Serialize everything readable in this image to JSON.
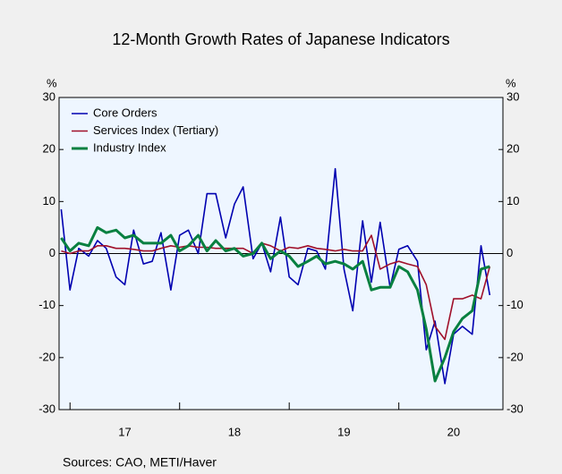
{
  "chart_data": {
    "type": "line",
    "title": "12-Month Growth Rates of Japanese Indicators",
    "y_unit": "%",
    "source": "Sources:  CAO, METI/Haver",
    "x": [
      16.92,
      17.0,
      17.08,
      17.17,
      17.25,
      17.33,
      17.42,
      17.5,
      17.58,
      17.67,
      17.75,
      17.83,
      17.92,
      18.0,
      18.08,
      18.17,
      18.25,
      18.33,
      18.42,
      18.5,
      18.58,
      18.67,
      18.75,
      18.83,
      18.92,
      19.0,
      19.08,
      19.17,
      19.25,
      19.33,
      19.42,
      19.5,
      19.58,
      19.67,
      19.75,
      19.83,
      19.92,
      20.0,
      20.08,
      20.17,
      20.25,
      20.33,
      20.42,
      20.5,
      20.58,
      20.67,
      20.75,
      20.83
    ],
    "xlim": [
      16.9,
      20.95
    ],
    "xticks": [
      {
        "value": 17.5,
        "label": "17"
      },
      {
        "value": 18.5,
        "label": "18"
      },
      {
        "value": 19.5,
        "label": "19"
      },
      {
        "value": 20.5,
        "label": "20"
      }
    ],
    "xminor": [
      17,
      18,
      19,
      20
    ],
    "ylim": [
      -30,
      30
    ],
    "yticks": [
      -30,
      -20,
      -10,
      0,
      10,
      20,
      30
    ],
    "legend": "top-left",
    "series": [
      {
        "name": "Core Orders",
        "color": "#0000b0",
        "width": 1.6,
        "values": [
          8.5,
          -7,
          1,
          -0.5,
          2.5,
          1,
          -4.5,
          -6,
          4.5,
          -2,
          -1.5,
          4,
          -7,
          3.5,
          4.5,
          0,
          11.5,
          11.5,
          3,
          9.5,
          12.8,
          -1,
          2,
          -3.5,
          7,
          -4.5,
          -6,
          1,
          0.5,
          -3,
          16.3,
          -3,
          -11,
          6.3,
          -5.5,
          6,
          -6.5,
          0.8,
          1.5,
          -1.5,
          -18.5,
          -13,
          -25,
          -15.5,
          -14,
          -15.5,
          1.5,
          -8
        ]
      },
      {
        "name": "Services Index (Tertiary)",
        "color": "#a0102a",
        "width": 1.6,
        "values": [
          0.5,
          0,
          0.5,
          0.5,
          1.5,
          1.5,
          1,
          1,
          0.8,
          0.5,
          0.5,
          1,
          1.5,
          1.2,
          1.5,
          1.2,
          1.2,
          1,
          1,
          1,
          1,
          0,
          2,
          1.5,
          0.5,
          1.2,
          1,
          1.5,
          1,
          0.8,
          0.5,
          0.8,
          0.5,
          0.5,
          3.5,
          -3,
          -2,
          -1.5,
          -2,
          -2.5,
          -6,
          -14,
          -16.5,
          -8.7,
          -8.7,
          -8,
          -8.7,
          -2.5
        ]
      },
      {
        "name": "Industry Index",
        "color": "#088040",
        "width": 3,
        "values": [
          3,
          0.5,
          2,
          1.5,
          5,
          4,
          4.5,
          3,
          3.5,
          2,
          2,
          2,
          3.5,
          0.5,
          1.5,
          3.5,
          0.5,
          2.5,
          0.5,
          1,
          -0.5,
          0,
          2,
          -1,
          0.5,
          -0.5,
          -2.5,
          -1.5,
          -0.5,
          -2,
          -1.5,
          -2,
          -3,
          -1.5,
          -7,
          -6.5,
          -6.5,
          -2.5,
          -3.5,
          -7,
          -14.5,
          -24.5,
          -20,
          -15,
          -12.5,
          -11,
          -3,
          -2.5
        ]
      }
    ]
  }
}
